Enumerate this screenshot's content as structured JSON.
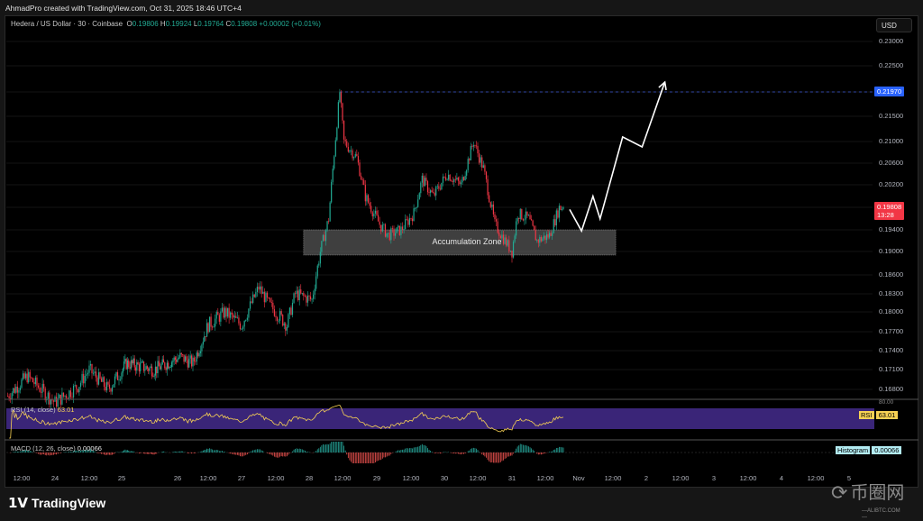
{
  "header": {
    "created_by": "AhmadPro created with TradingView.com, Oct 31, 2025 18:46 UTC+4"
  },
  "legend": {
    "symbol": "Hedera / US Dollar · 30 · Coinbase",
    "o_label": "O",
    "o": "0.19806",
    "h_label": "H",
    "h": "0.19924",
    "l_label": "L",
    "l": "0.19764",
    "c_label": "C",
    "c": "0.19808",
    "change": "+0.00002 (+0.01%)"
  },
  "currency": "USD",
  "price_tags": {
    "target": {
      "value": "0.21970",
      "color": "#2962ff"
    },
    "last": {
      "value": "0.19808",
      "countdown": "13:28",
      "color": "#f23645"
    }
  },
  "annotation": {
    "zone_label": "Accumulation Zone",
    "zone_low": 0.1894,
    "zone_high": 0.194,
    "zone_start": "2025-10-27T22:00",
    "zone_end": "2025-11-01T13:00"
  },
  "rsi": {
    "title": "RSI (14, close)",
    "value": "63.01",
    "badge": "RSI",
    "upper_label": "80.00",
    "color": "#f7d154",
    "band_color": "#3a2578"
  },
  "macd": {
    "title": "MACD (12, 26, close)",
    "value": "0.00066",
    "badge": "Histogram"
  },
  "footer": {
    "brand": "TradingView",
    "watermark": "币圈网",
    "watermark_sub": "—ALIBTC.COM—"
  },
  "chart_data": {
    "type": "candlestick",
    "interval": "30",
    "y_ticks": [
      "0.23000",
      "0.22500",
      "0.21970",
      "0.21500",
      "0.21000",
      "0.20600",
      "0.20200",
      "0.19808",
      "0.19400",
      "0.19000",
      "0.18600",
      "0.18300",
      "0.18000",
      "0.17700",
      "0.17400",
      "0.17100",
      "0.16800"
    ],
    "x_ticks": [
      "12:00",
      "24",
      "12:00",
      "25",
      "26",
      "12:00",
      "27",
      "12:00",
      "28",
      "12:00",
      "29",
      "12:00",
      "30",
      "12:00",
      "31",
      "12:00",
      "Nov",
      "12:00",
      "2",
      "12:00",
      "3",
      "12:00",
      "4",
      "12:00",
      "5"
    ],
    "colors": {
      "up": "#22ab94",
      "down": "#f23645",
      "projection": "#ffffff"
    },
    "price_path": [
      [
        "2025-10-23T07:00",
        0.167
      ],
      [
        "2025-10-23T14:00",
        0.17
      ],
      [
        "2025-10-23T19:00",
        0.168
      ],
      [
        "2025-10-24T00:00",
        0.166
      ],
      [
        "2025-10-24T08:00",
        0.1685
      ],
      [
        "2025-10-24T12:00",
        0.171
      ],
      [
        "2025-10-24T19:00",
        0.168
      ],
      [
        "2025-10-25T02:00",
        0.172
      ],
      [
        "2025-10-25T14:00",
        0.171
      ],
      [
        "2025-10-26T01:00",
        0.173
      ],
      [
        "2025-10-26T06:00",
        0.172
      ],
      [
        "2025-10-26T12:00",
        0.178
      ],
      [
        "2025-10-26T18:00",
        0.18
      ],
      [
        "2025-10-27T00:00",
        0.178
      ],
      [
        "2025-10-27T06:00",
        0.184
      ],
      [
        "2025-10-27T10:00",
        0.181
      ],
      [
        "2025-10-27T16:00",
        0.178
      ],
      [
        "2025-10-27T19:00",
        0.183
      ],
      [
        "2025-10-28T01:00",
        0.182
      ],
      [
        "2025-10-28T04:00",
        0.19
      ],
      [
        "2025-10-28T07:00",
        0.196
      ],
      [
        "2025-10-28T11:00",
        0.2197
      ],
      [
        "2025-10-28T12:30",
        0.21
      ],
      [
        "2025-10-28T17:00",
        0.207
      ],
      [
        "2025-10-28T20:00",
        0.2
      ],
      [
        "2025-10-29T01:00",
        0.195
      ],
      [
        "2025-10-29T04:00",
        0.193
      ],
      [
        "2025-10-29T08:30",
        0.194
      ],
      [
        "2025-10-29T13:00",
        0.197
      ],
      [
        "2025-10-29T16:00",
        0.203
      ],
      [
        "2025-10-29T20:00",
        0.2
      ],
      [
        "2025-10-30T01:00",
        0.204
      ],
      [
        "2025-10-30T06:00",
        0.202
      ],
      [
        "2025-10-30T10:30",
        0.21
      ],
      [
        "2025-10-30T14:00",
        0.205
      ],
      [
        "2025-10-30T18:00",
        0.195
      ],
      [
        "2025-10-30T21:30",
        0.192
      ],
      [
        "2025-10-31T00:00",
        0.19
      ],
      [
        "2025-10-31T02:00",
        0.197
      ],
      [
        "2025-10-31T06:00",
        0.196
      ],
      [
        "2025-10-31T09:00",
        0.192
      ],
      [
        "2025-10-31T13:30",
        0.193
      ],
      [
        "2025-10-31T17:00",
        0.198
      ],
      [
        "2025-10-31T18:30",
        0.19808
      ]
    ],
    "projection_path": [
      [
        "2025-10-31T20:45",
        0.1977
      ],
      [
        "2025-11-01T01:00",
        0.1938
      ],
      [
        "2025-11-01T05:00",
        0.2
      ],
      [
        "2025-11-01T07:30",
        0.196
      ],
      [
        "2025-11-01T15:30",
        0.2109
      ],
      [
        "2025-11-01T22:30",
        0.209
      ],
      [
        "2025-11-02T06:30",
        0.2217
      ]
    ],
    "target_line": 0.2197
  }
}
